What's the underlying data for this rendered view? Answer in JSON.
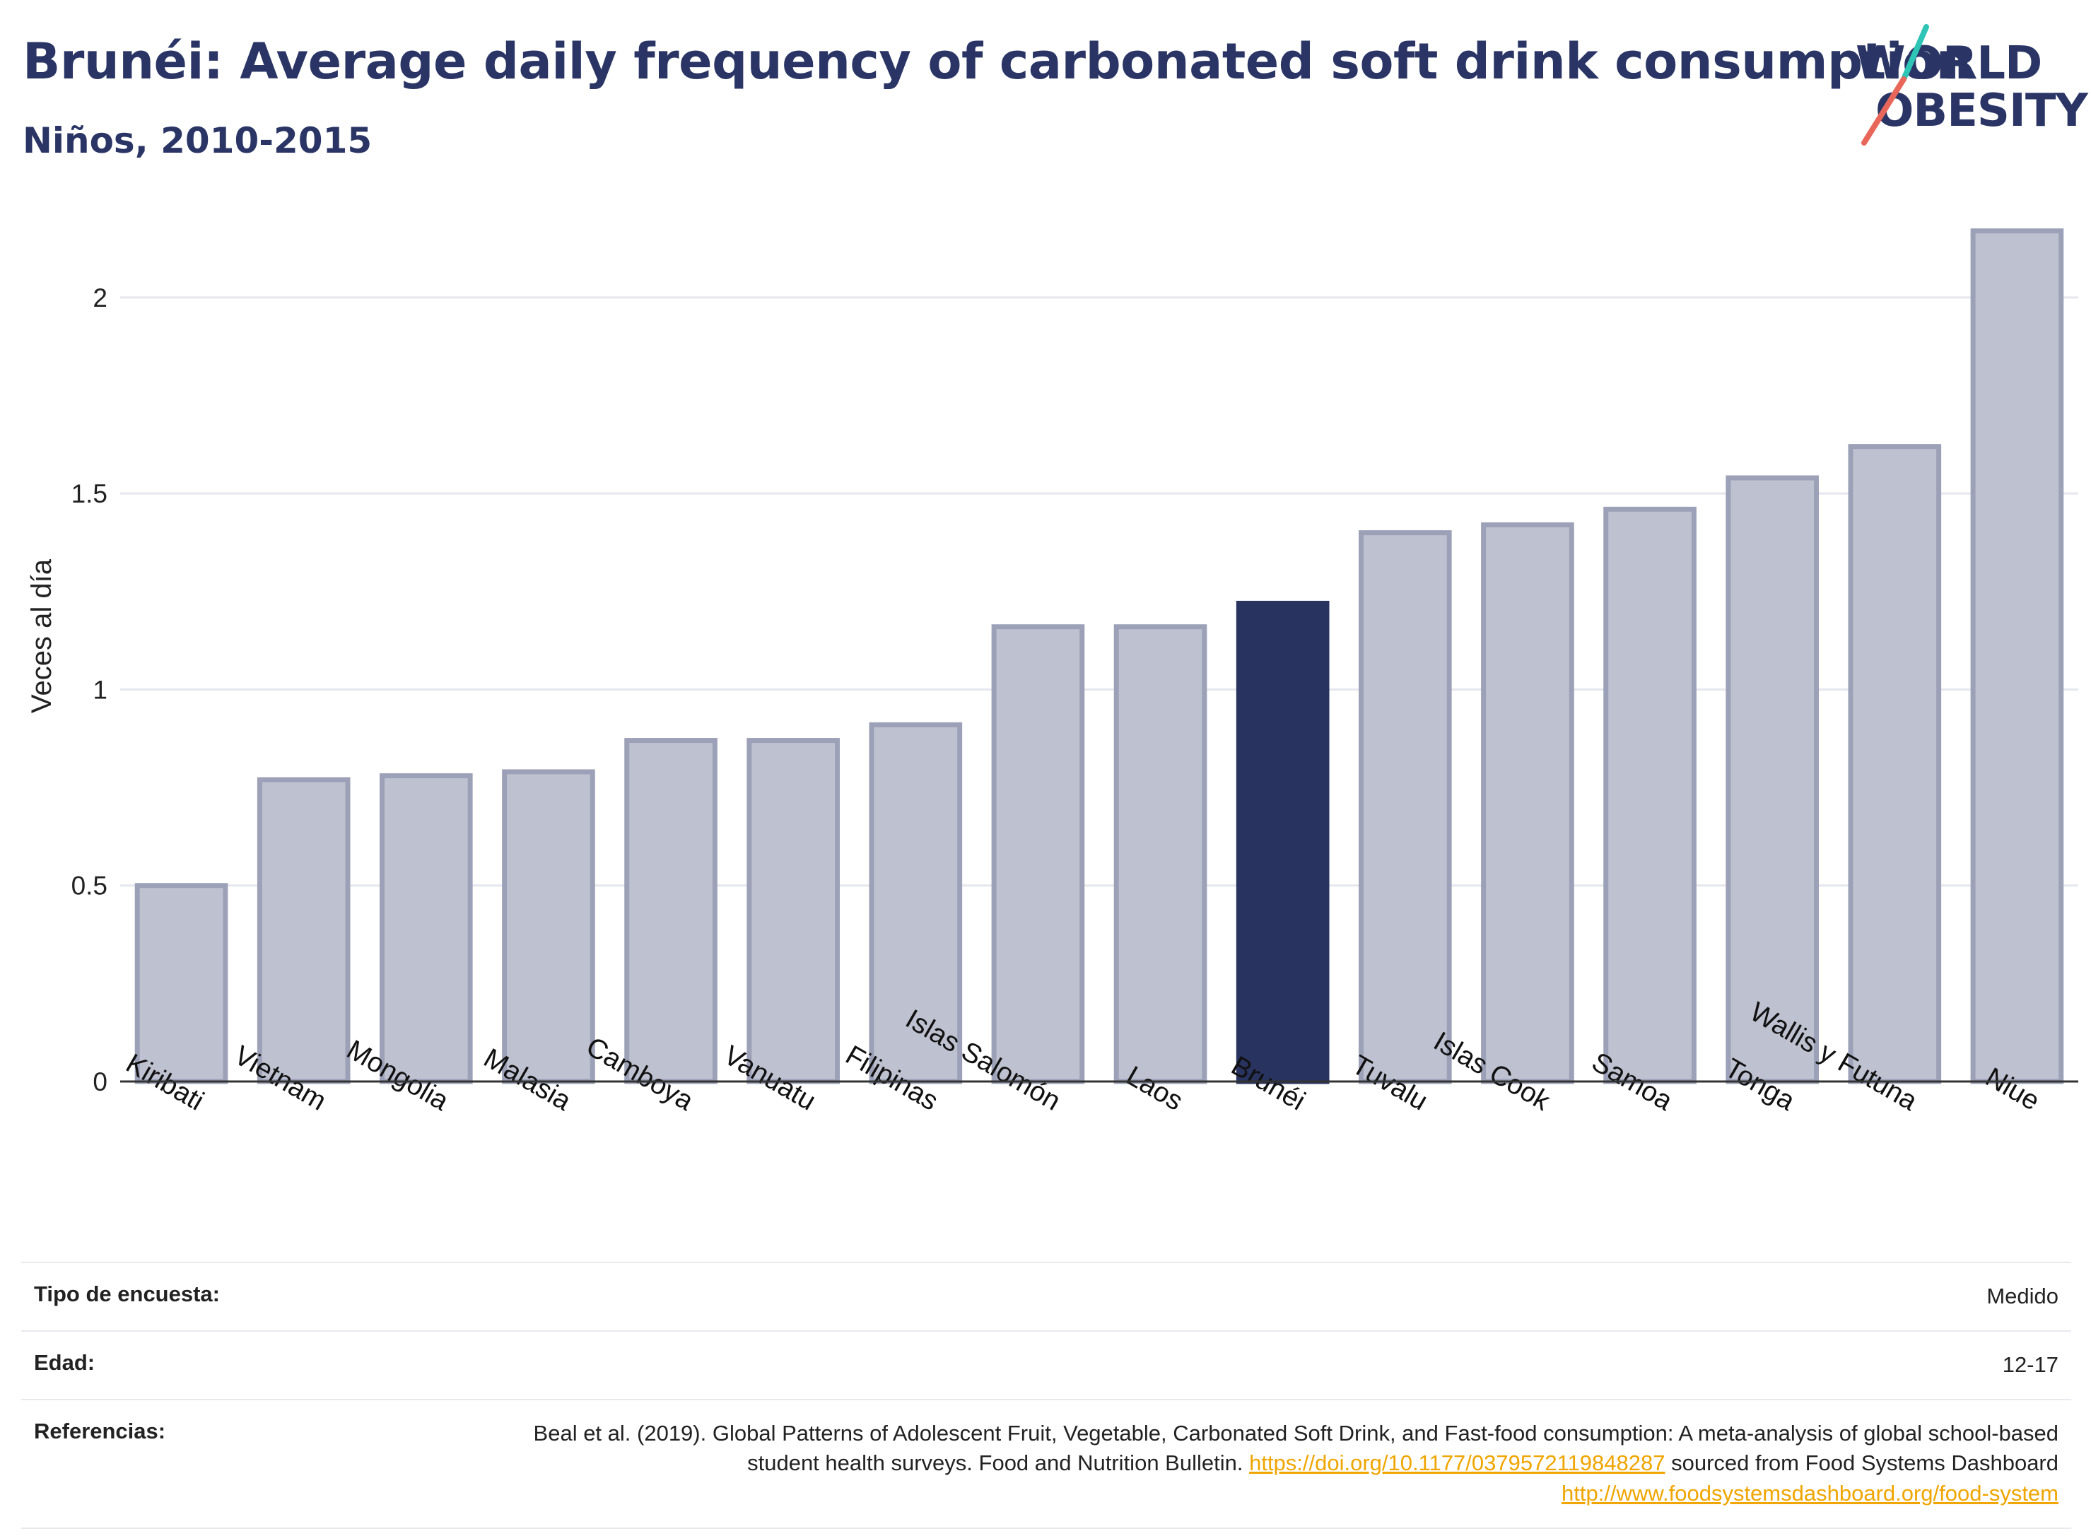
{
  "header": {
    "title": "Brunéi: Average daily frequency of carbonated soft drink consumption",
    "subtitle": "Niños, 2010-2015"
  },
  "logo": {
    "line1": "WORLD",
    "line2": "OBESITY"
  },
  "colors": {
    "highlight": "#283360",
    "bar_fill": "#bec1cf",
    "bar_edge": "#9da1b8",
    "grid": "#e6e7ee",
    "axis": "#333333",
    "logo_teal": "#2ec4b6",
    "logo_coral": "#e8675a",
    "link": "#f0a500"
  },
  "chart_data": {
    "type": "bar",
    "categories": [
      "Kiribati",
      "Vietnam",
      "Mongolia",
      "Malasia",
      "Camboya",
      "Vanuatu",
      "Filipinas",
      "Islas Salomón",
      "Laos",
      "Brunéi",
      "Tuvalu",
      "Islas Cook",
      "Samoa",
      "Tonga",
      "Wallis y Futuna",
      "Niue"
    ],
    "values": [
      0.5,
      0.77,
      0.78,
      0.79,
      0.87,
      0.87,
      0.91,
      1.16,
      1.16,
      1.22,
      1.4,
      1.42,
      1.46,
      1.54,
      1.62,
      2.17
    ],
    "highlight": "Brunéi",
    "ylabel": "Veces al día",
    "ylim": [
      0,
      2.2
    ],
    "yticks": [
      0,
      0.5,
      1,
      1.5,
      2
    ],
    "ytick_labels": [
      "0",
      "0.5",
      "1",
      "1.5",
      "2"
    ],
    "grid": true
  },
  "info": [
    {
      "label": "Tipo de encuesta:",
      "value": "Medido"
    },
    {
      "label": "Edad:",
      "value": "12-17"
    }
  ],
  "references": {
    "label": "Referencias:",
    "text1": "Beal et al. (2019). Global Patterns of Adolescent Fruit, Vegetable, Carbonated Soft Drink, and Fast-food consumption: A meta-analysis of global school-based student health surveys. Food and Nutrition Bulletin.",
    "link1": "https://doi.org/10.1177/0379572119848287",
    "text2": "sourced from Food Systems Dashboard",
    "link2": "http://www.foodsystemsdashboard.org/food-system"
  }
}
